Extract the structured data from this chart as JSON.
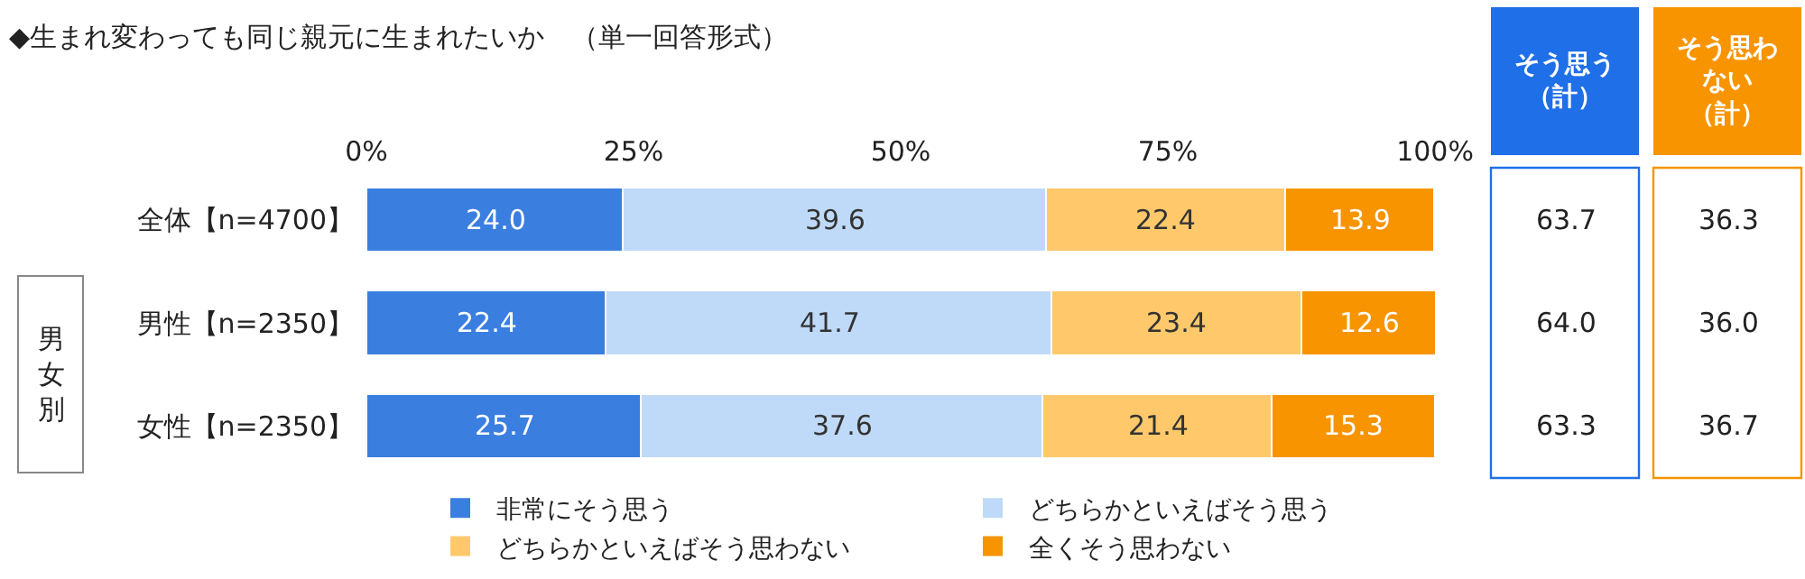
{
  "chart_data": {
    "type": "bar",
    "orientation": "horizontal",
    "stacked": true,
    "title": "◆生まれ変わっても同じ親元に生まれたいか　（単一回答形式）",
    "categories": [
      "全体【n=4700】",
      "男性【n=2350】",
      "女性【n=2350】"
    ],
    "series": [
      {
        "name": "非常にそう思う",
        "color": "#3a7ee0",
        "values": [
          24.0,
          22.4,
          25.7
        ]
      },
      {
        "name": "どちらかといえばそう思う",
        "color": "#bfdaf8",
        "values": [
          39.6,
          41.7,
          37.6
        ]
      },
      {
        "name": "どちらかといえばそう思わない",
        "color": "#ffc96b",
        "values": [
          22.4,
          23.4,
          21.4
        ]
      },
      {
        "name": "全くそう思わない",
        "color": "#f79400",
        "values": [
          13.9,
          12.6,
          15.3
        ]
      }
    ],
    "xlim": [
      0,
      100
    ],
    "xticks": [
      {
        "value": 0,
        "label": "0%"
      },
      {
        "value": 25,
        "label": "25%"
      },
      {
        "value": 50,
        "label": "50%"
      },
      {
        "value": 75,
        "label": "75%"
      },
      {
        "value": 100,
        "label": "100%"
      }
    ],
    "value_labels": [
      [
        "24.0",
        "22.4",
        "25.7"
      ],
      [
        "39.6",
        "41.7",
        "37.6"
      ],
      [
        "22.4",
        "23.4",
        "21.4"
      ],
      [
        "13.9",
        "12.6",
        "15.3"
      ]
    ],
    "grid": false,
    "legend": "bottom",
    "annotations": [
      "男女別",
      "そう思う（計）",
      "そう思わない（計）",
      "63.7",
      "64.0",
      "63.3",
      "36.3",
      "36.0",
      "36.7"
    ]
  }
}
